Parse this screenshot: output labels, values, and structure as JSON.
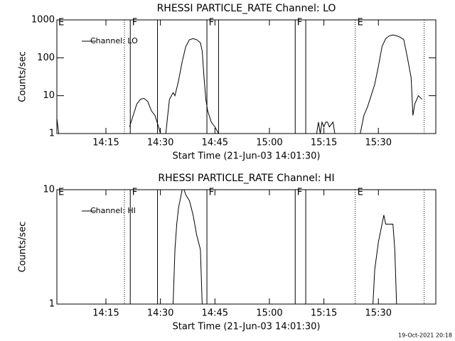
{
  "chart_data": [
    {
      "type": "line",
      "title": "RHESSI PARTICLE_RATE Channel: LO",
      "x_label": "Start Time (21-Jun-03 14:01:30)",
      "y_label": "Counts/sec",
      "log_y": true,
      "legend": "upper left",
      "xlim": [
        1.5,
        105.8
      ],
      "ylim": [
        1,
        1000
      ],
      "xticks": [
        {
          "value": 15,
          "label": "14:15"
        },
        {
          "value": 30,
          "label": "14:30"
        },
        {
          "value": 45,
          "label": "14:45"
        },
        {
          "value": 60,
          "label": "15:00"
        },
        {
          "value": 75,
          "label": "15:15"
        },
        {
          "value": 90,
          "label": "15:30"
        }
      ],
      "yticks": [
        1,
        10,
        100,
        1000
      ],
      "x": [
        1.5,
        2,
        10,
        21.5,
        22.5,
        23.5,
        24.5,
        25.5,
        26.5,
        27.5,
        28.5,
        29.5,
        30,
        31,
        31.5,
        32,
        32.5,
        33.5,
        34,
        35,
        36,
        37,
        38,
        39,
        40,
        41,
        41.5,
        42,
        42.5,
        43,
        44,
        45,
        46,
        60,
        73,
        73.5,
        74,
        74.5,
        75,
        75.5,
        76,
        76.5,
        77.5,
        78,
        80,
        85,
        86,
        87,
        88,
        89,
        90,
        91,
        92,
        93,
        94,
        95,
        96,
        97,
        98,
        99,
        99.5,
        100,
        101,
        102
      ],
      "series": [
        {
          "name": "Channel: LO",
          "color": "#000000",
          "values": [
            2.5,
            1,
            null,
            1.5,
            3,
            6,
            8,
            8.5,
            7,
            4,
            3,
            1.5,
            1,
            null,
            1,
            3,
            8,
            12,
            10,
            25,
            80,
            200,
            300,
            320,
            300,
            250,
            150,
            30,
            8,
            4,
            2,
            1.5,
            1,
            null,
            1,
            2,
            1,
            2,
            1.5,
            2,
            2,
            1.5,
            2,
            1,
            null,
            1,
            3,
            5,
            10,
            20,
            60,
            200,
            320,
            380,
            400,
            380,
            350,
            300,
            100,
            30,
            3,
            6,
            10,
            8
          ]
        }
      ],
      "event_lines": [
        {
          "x": 20.1,
          "style": "dotted"
        },
        {
          "x": 21.7,
          "style": "solid"
        },
        {
          "x": 29.2,
          "style": "solid"
        },
        {
          "x": 42.8,
          "style": "solid"
        },
        {
          "x": 46.0,
          "style": "solid"
        },
        {
          "x": 67.1,
          "style": "solid"
        },
        {
          "x": 70.0,
          "style": "solid"
        },
        {
          "x": 83.6,
          "style": "dotted"
        },
        {
          "x": 102.6,
          "style": "dotted"
        }
      ],
      "markers": [
        {
          "x": 1.9,
          "label": "E"
        },
        {
          "x": 22.2,
          "label": "F"
        },
        {
          "x": 43.3,
          "label": "F"
        },
        {
          "x": 67.6,
          "label": "F"
        },
        {
          "x": 84.2,
          "label": "E"
        }
      ]
    },
    {
      "type": "line",
      "title": "RHESSI PARTICLE_RATE Channel: HI",
      "x_label": "Start Time (21-Jun-03 14:01:30)",
      "y_label": "Counts/sec",
      "log_y": true,
      "legend": "upper left",
      "xlim": [
        1.5,
        105.8
      ],
      "ylim": [
        1,
        10
      ],
      "xticks": [
        {
          "value": 15,
          "label": "14:15"
        },
        {
          "value": 30,
          "label": "14:30"
        },
        {
          "value": 45,
          "label": "14:45"
        },
        {
          "value": 60,
          "label": "15:00"
        },
        {
          "value": 75,
          "label": "15:15"
        },
        {
          "value": 90,
          "label": "15:30"
        }
      ],
      "yticks": [
        1,
        10
      ],
      "x": [
        33.5,
        34,
        34.5,
        35,
        36,
        36.5,
        37,
        38,
        39,
        40,
        41,
        41.5,
        60,
        88.5,
        89,
        90,
        91,
        91.5,
        92,
        92.5,
        93,
        94,
        94.5,
        95
      ],
      "series": [
        {
          "name": "Channel: HI",
          "color": "#000000",
          "values": [
            1,
            3,
            5,
            7,
            10,
            10,
            9,
            8,
            6,
            4,
            3,
            1,
            null,
            1,
            2,
            3.5,
            5,
            6,
            5,
            5,
            5,
            5,
            3,
            1
          ]
        }
      ],
      "event_lines": [
        {
          "x": 20.1,
          "style": "dotted"
        },
        {
          "x": 21.7,
          "style": "solid"
        },
        {
          "x": 29.2,
          "style": "solid"
        },
        {
          "x": 42.8,
          "style": "solid"
        },
        {
          "x": 67.1,
          "style": "solid"
        },
        {
          "x": 70.0,
          "style": "solid"
        },
        {
          "x": 83.6,
          "style": "dotted"
        },
        {
          "x": 102.6,
          "style": "dotted"
        }
      ],
      "markers": [
        {
          "x": 1.9,
          "label": "E"
        },
        {
          "x": 22.2,
          "label": "F"
        },
        {
          "x": 43.3,
          "label": "F"
        },
        {
          "x": 67.6,
          "label": "F"
        },
        {
          "x": 84.2,
          "label": "E"
        }
      ]
    }
  ],
  "footer": "19-Oct-2021 20:18"
}
